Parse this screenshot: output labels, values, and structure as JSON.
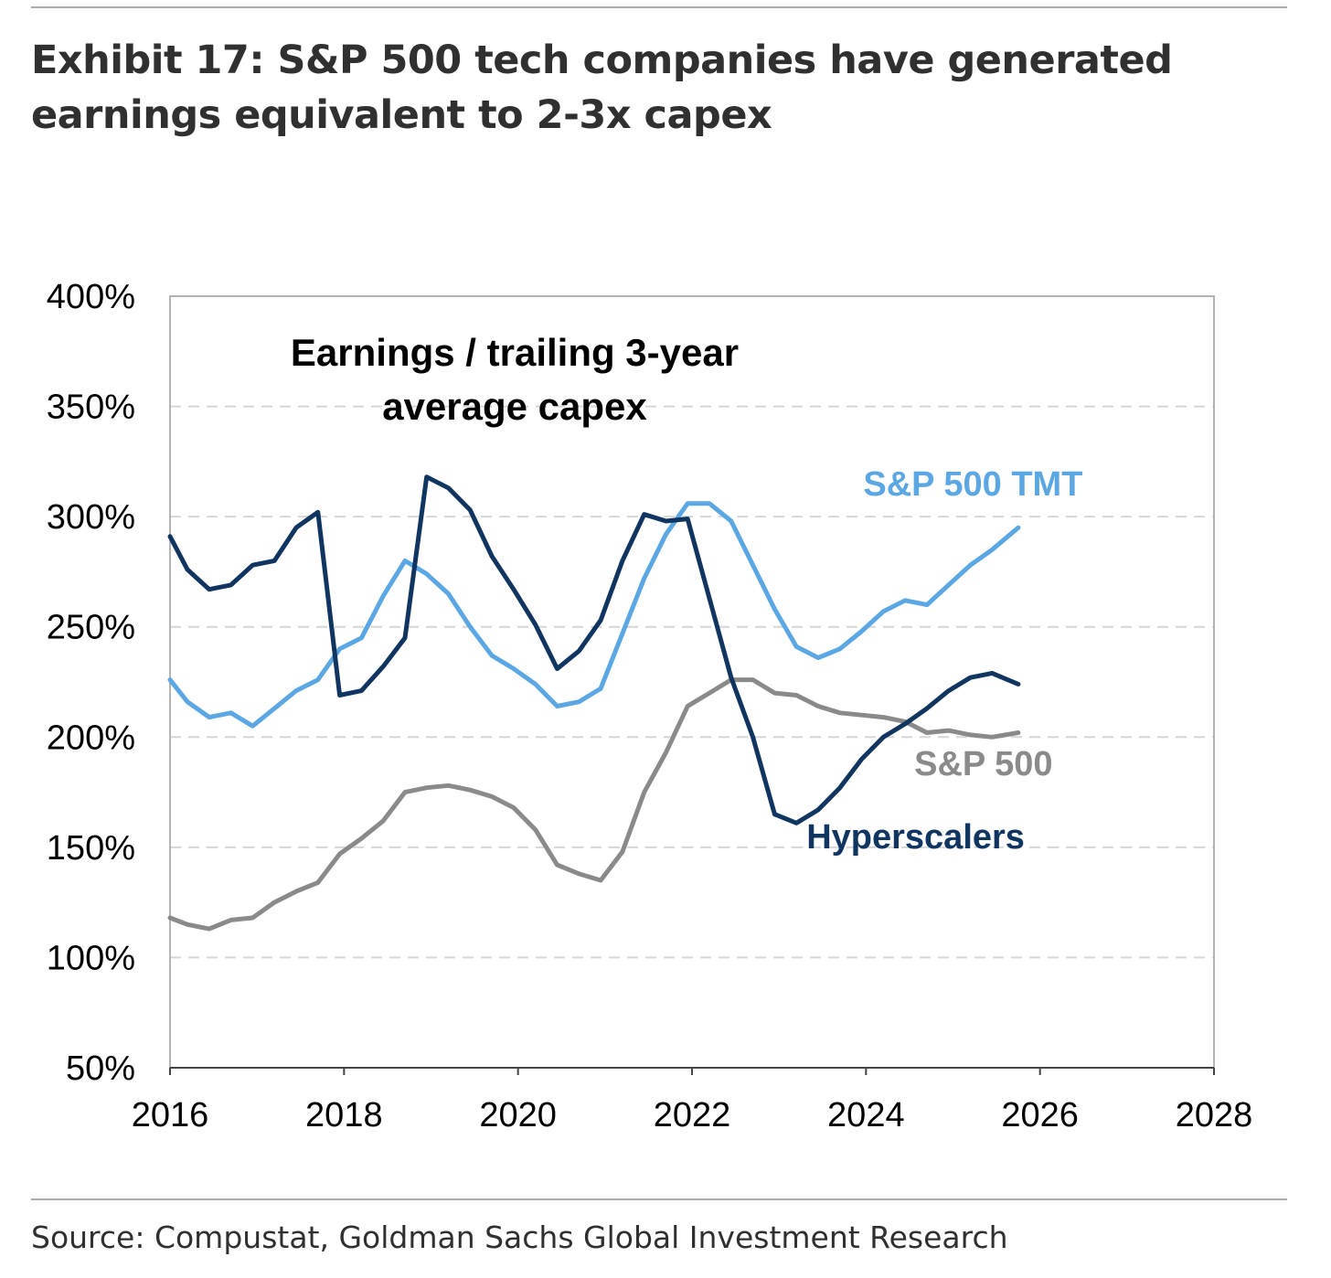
{
  "title": "Exhibit 17: S&P 500 tech companies have generated earnings equivalent to 2-3x capex",
  "source": "Source: Compustat, Goldman Sachs Global Investment Research",
  "colors": {
    "tmt": "#5ba7e4",
    "hyperscalers": "#0f3560",
    "sp500": "#8a8a8a",
    "grid": "#d6d6d6",
    "frame": "#b3b3b3"
  },
  "chart_data": {
    "type": "line",
    "title_lines": [
      "Earnings / trailing 3-year",
      "average capex"
    ],
    "xlim": [
      2016,
      2028
    ],
    "ylim": [
      50,
      400
    ],
    "x_ticks": [
      2016,
      2018,
      2020,
      2022,
      2024,
      2026,
      2028
    ],
    "x_tick_labels": [
      "2016",
      "2018",
      "2020",
      "2022",
      "2024",
      "2026",
      "2028"
    ],
    "y_ticks": [
      50,
      100,
      150,
      200,
      250,
      300,
      350,
      400
    ],
    "y_tick_labels": [
      "50%",
      "100%",
      "150%",
      "200%",
      "250%",
      "300%",
      "350%",
      "400%"
    ],
    "grid": true,
    "series": [
      {
        "name": "S&P 500 TMT",
        "color": "#5ba7e4",
        "x": [
          2016.0,
          2016.2,
          2016.45,
          2016.7,
          2016.95,
          2017.2,
          2017.45,
          2017.7,
          2017.95,
          2018.2,
          2018.45,
          2018.7,
          2018.95,
          2019.2,
          2019.45,
          2019.7,
          2019.95,
          2020.2,
          2020.45,
          2020.7,
          2020.95,
          2021.2,
          2021.45,
          2021.7,
          2021.95,
          2022.2,
          2022.45,
          2022.7,
          2022.95,
          2023.2,
          2023.45,
          2023.7,
          2023.95,
          2024.2,
          2024.45,
          2024.7,
          2024.95,
          2025.2,
          2025.45,
          2025.75
        ],
        "values": [
          226,
          216,
          209,
          211,
          205,
          213,
          221,
          226,
          240,
          245,
          264,
          280,
          274,
          265,
          250,
          237,
          231,
          224,
          214,
          216,
          222,
          247,
          272,
          292,
          306,
          306,
          298,
          278,
          258,
          241,
          236,
          240,
          248,
          257,
          262,
          260,
          269,
          278,
          285,
          295
        ]
      },
      {
        "name": "Hyperscalers",
        "color": "#0f3560",
        "x": [
          2016.0,
          2016.2,
          2016.45,
          2016.7,
          2016.95,
          2017.2,
          2017.45,
          2017.7,
          2017.95,
          2018.2,
          2018.45,
          2018.7,
          2018.95,
          2019.2,
          2019.45,
          2019.7,
          2019.95,
          2020.2,
          2020.45,
          2020.7,
          2020.95,
          2021.2,
          2021.45,
          2021.7,
          2021.95,
          2022.2,
          2022.45,
          2022.7,
          2022.95,
          2023.2,
          2023.45,
          2023.7,
          2023.95,
          2024.2,
          2024.45,
          2024.7,
          2024.95,
          2025.2,
          2025.45,
          2025.75
        ],
        "values": [
          291,
          276,
          267,
          269,
          278,
          280,
          295,
          302,
          219,
          221,
          232,
          245,
          318,
          313,
          303,
          282,
          267,
          251,
          231,
          239,
          253,
          280,
          301,
          298,
          299,
          263,
          227,
          200,
          165,
          161,
          167,
          177,
          190,
          200,
          206,
          213,
          221,
          227,
          229,
          224
        ]
      },
      {
        "name": "S&P 500",
        "color": "#8a8a8a",
        "x": [
          2016.0,
          2016.2,
          2016.45,
          2016.7,
          2016.95,
          2017.2,
          2017.45,
          2017.7,
          2017.95,
          2018.2,
          2018.45,
          2018.7,
          2018.95,
          2019.2,
          2019.45,
          2019.7,
          2019.95,
          2020.2,
          2020.45,
          2020.7,
          2020.95,
          2021.2,
          2021.45,
          2021.7,
          2021.95,
          2022.2,
          2022.45,
          2022.7,
          2022.95,
          2023.2,
          2023.45,
          2023.7,
          2023.95,
          2024.2,
          2024.45,
          2024.7,
          2024.95,
          2025.2,
          2025.45,
          2025.75
        ],
        "values": [
          118,
          115,
          113,
          117,
          118,
          125,
          130,
          134,
          147,
          154,
          162,
          175,
          177,
          178,
          176,
          173,
          168,
          158,
          142,
          138,
          135,
          148,
          175,
          193,
          214,
          220,
          226,
          226,
          220,
          219,
          214,
          211,
          210,
          209,
          207,
          202,
          203,
          201,
          200,
          202
        ]
      }
    ],
    "series_labels": [
      {
        "text": "S&P 500 TMT",
        "series": "S&P 500 TMT",
        "x": 2025.23,
        "y": 315
      },
      {
        "text": "Hyperscalers",
        "series": "Hyperscalers",
        "x": 2024.57,
        "y": 155
      },
      {
        "text": "S&P 500",
        "series": "S&P 500",
        "x": 2025.35,
        "y": 188
      }
    ]
  }
}
